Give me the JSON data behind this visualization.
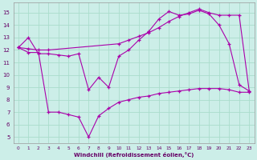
{
  "xlabel": "Windchill (Refroidissement éolien,°C)",
  "bg_color": "#cceee8",
  "line_color": "#aa00aa",
  "grid_color": "#aaddcc",
  "xlim": [
    -0.5,
    23.5
  ],
  "ylim": [
    4.5,
    15.8
  ],
  "yticks": [
    5,
    6,
    7,
    8,
    9,
    10,
    11,
    12,
    13,
    14,
    15
  ],
  "xticks": [
    0,
    1,
    2,
    3,
    4,
    5,
    6,
    7,
    8,
    9,
    10,
    11,
    12,
    13,
    14,
    15,
    16,
    17,
    18,
    19,
    20,
    21,
    22,
    23
  ],
  "series1_x": [
    0,
    1,
    2,
    3,
    4,
    5,
    6,
    7,
    8,
    9,
    10,
    11,
    12,
    13,
    14,
    15,
    16,
    17,
    18,
    19,
    20,
    21,
    22,
    23
  ],
  "series1_y": [
    12.2,
    13.0,
    11.7,
    11.7,
    11.6,
    11.5,
    11.7,
    8.8,
    9.8,
    9.0,
    11.5,
    12.0,
    12.8,
    13.5,
    14.5,
    15.1,
    14.8,
    14.9,
    15.2,
    14.9,
    14.0,
    12.5,
    9.2,
    8.7
  ],
  "series2_x": [
    0,
    1,
    2,
    3,
    4,
    5,
    6,
    7,
    8,
    9,
    10,
    11,
    12,
    13,
    14,
    15,
    16,
    17,
    18,
    19,
    20,
    21,
    22,
    23
  ],
  "series2_y": [
    12.2,
    11.8,
    11.8,
    7.0,
    7.0,
    6.8,
    6.6,
    5.0,
    6.7,
    7.3,
    7.8,
    8.0,
    8.2,
    8.3,
    8.5,
    8.6,
    8.7,
    8.8,
    8.9,
    8.9,
    8.9,
    8.8,
    8.6,
    8.6
  ],
  "series3_x": [
    0,
    1,
    2,
    3,
    10,
    11,
    12,
    13,
    14,
    15,
    16,
    17,
    18,
    19,
    20,
    21,
    22,
    23
  ],
  "series3_y": [
    12.2,
    12.1,
    12.0,
    12.0,
    12.5,
    12.8,
    13.1,
    13.4,
    13.8,
    14.3,
    14.7,
    15.0,
    15.3,
    15.0,
    14.8,
    14.8,
    14.8,
    8.7
  ]
}
